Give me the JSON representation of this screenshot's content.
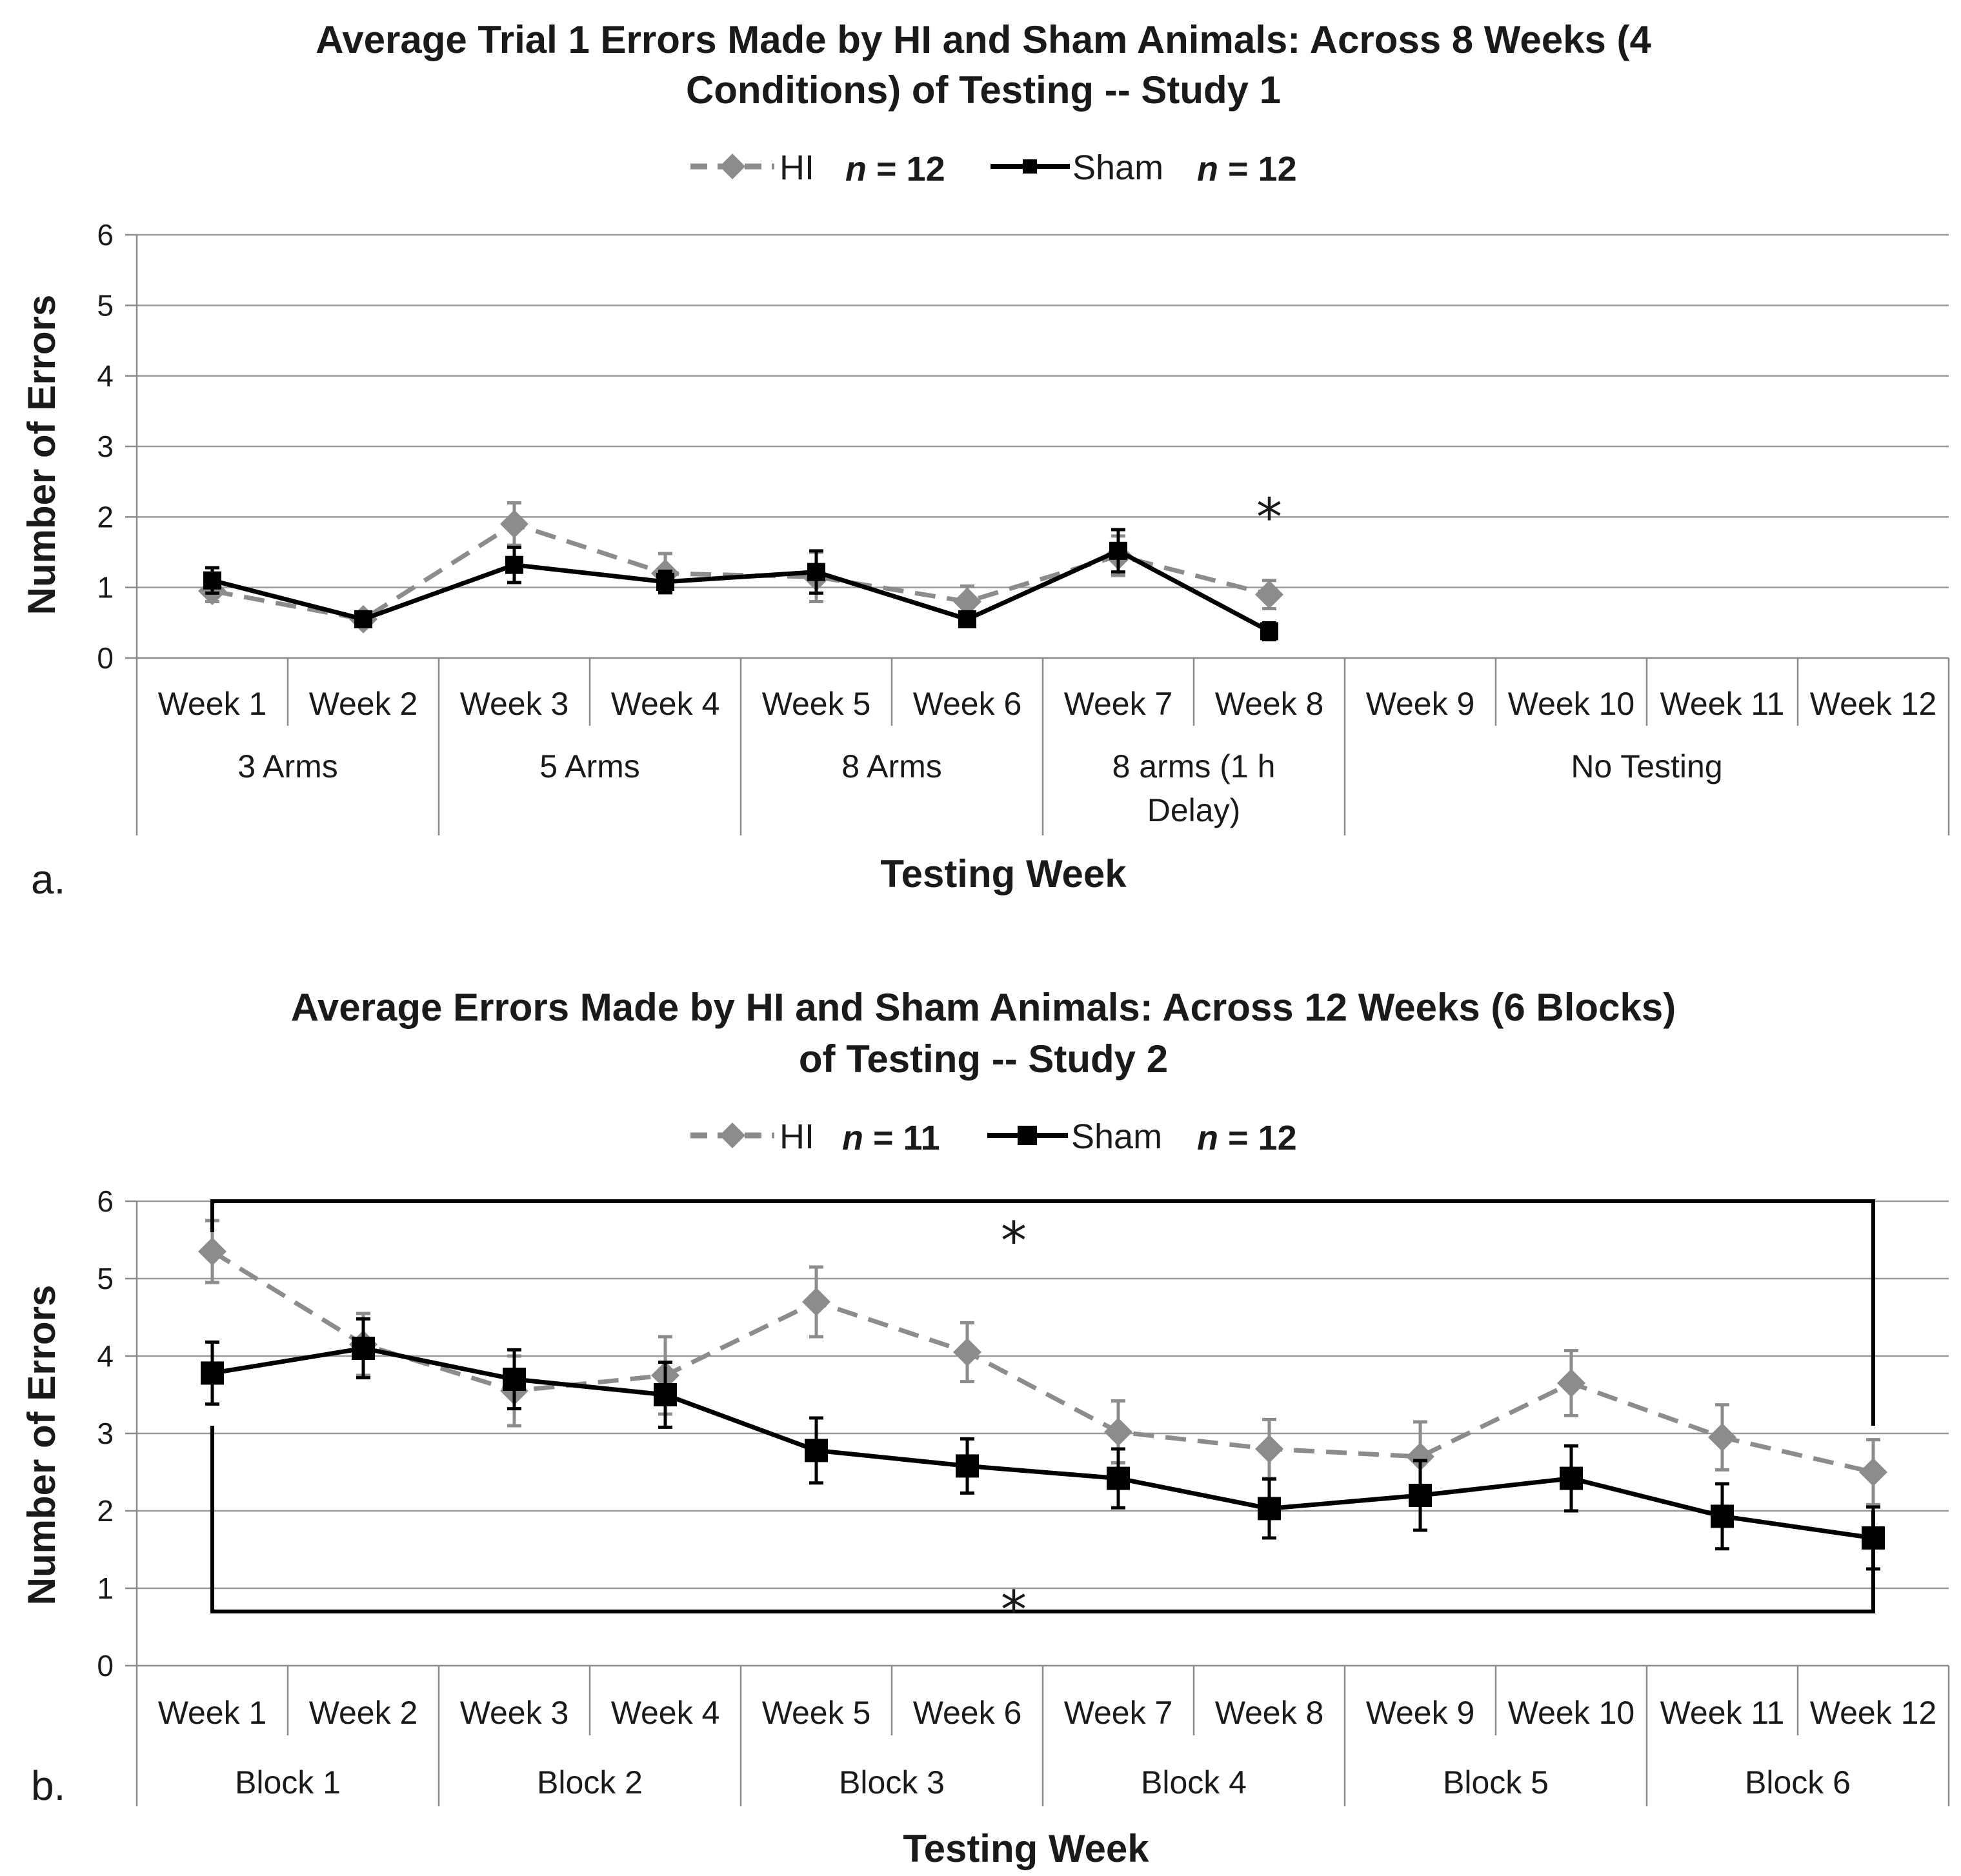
{
  "figure": {
    "panels": [
      {
        "id": "a",
        "panel_label": "a.",
        "title_lines": [
          "Average Trial 1 Errors Made by HI and Sham Animals: Across 8 Weeks (4",
          "Conditions) of Testing -- Study 1"
        ],
        "legend": [
          {
            "name": "HI",
            "n_prefix": "n",
            "n_value": " = 12"
          },
          {
            "name": "Sham",
            "n_prefix": "n",
            "n_value": " = 12"
          }
        ],
        "significance_marks": [
          {
            "text": "*",
            "week": "Week 8",
            "value": 2.2
          }
        ]
      },
      {
        "id": "b",
        "panel_label": "b.",
        "title_lines": [
          "Average Errors Made by HI and Sham Animals: Across 12 Weeks (6 Blocks)",
          "of Testing -- Study 2"
        ],
        "legend": [
          {
            "name": "HI",
            "n_prefix": "n",
            "n_value": " = 11"
          },
          {
            "name": "Sham",
            "n_prefix": "n",
            "n_value": " = 12"
          }
        ],
        "significance_marks": [
          {
            "text": "*",
            "bracket": "top",
            "from": "Week 1",
            "to": "Week 12",
            "value": 5.8
          },
          {
            "text": "*",
            "bracket": "bottom",
            "from": "Week 1",
            "to": "Week 12",
            "value": 0.95
          }
        ]
      }
    ]
  },
  "chart_data": [
    {
      "type": "line",
      "title": "Average Trial 1 Errors Made by HI and Sham Animals: Across 8 Weeks (4 Conditions) of Testing -- Study 1",
      "xlabel": "Testing Week",
      "ylabel": "Number of Errors",
      "ylim": [
        0,
        6
      ],
      "yticks": [
        0,
        1,
        2,
        3,
        4,
        5,
        6
      ],
      "grid": true,
      "legend_position": "top-center",
      "categories": [
        "Week 1",
        "Week 2",
        "Week 3",
        "Week 4",
        "Week 5",
        "Week 6",
        "Week 7",
        "Week 8",
        "Week 9",
        "Week 10",
        "Week 11",
        "Week 12"
      ],
      "groups": [
        {
          "label": "3 Arms",
          "weeks": 2
        },
        {
          "label": "5 Arms",
          "weeks": 2
        },
        {
          "label": "8 Arms",
          "weeks": 2
        },
        {
          "label": "8 arms (1  h Delay)",
          "label_lines": [
            "8 arms (1  h",
            "Delay)"
          ],
          "weeks": 2
        },
        {
          "label": "No Testing",
          "weeks": 4
        }
      ],
      "series": [
        {
          "name": "HI",
          "color": "#8c8c8c",
          "style": "dashed",
          "marker": "diamond",
          "values": [
            0.95,
            0.55,
            1.9,
            1.2,
            1.15,
            0.8,
            1.45,
            0.9,
            null,
            null,
            null,
            null
          ],
          "errors": [
            0.15,
            0.08,
            0.3,
            0.28,
            0.35,
            0.22,
            0.28,
            0.2,
            null,
            null,
            null,
            null
          ]
        },
        {
          "name": "Sham",
          "color": "#000000",
          "style": "solid",
          "marker": "square",
          "values": [
            1.1,
            0.55,
            1.32,
            1.08,
            1.22,
            0.55,
            1.52,
            0.38,
            null,
            null,
            null,
            null
          ],
          "errors": [
            0.18,
            0.1,
            0.25,
            0.15,
            0.3,
            0.1,
            0.3,
            0.12,
            null,
            null,
            null,
            null
          ]
        }
      ]
    },
    {
      "type": "line",
      "title": "Average Errors Made by HI and Sham Animals: Across 12 Weeks (6 Blocks) of Testing -- Study 2",
      "xlabel": "Testing Week",
      "ylabel": "Number of Errors",
      "ylim": [
        0,
        6
      ],
      "yticks": [
        0,
        1,
        2,
        3,
        4,
        5,
        6
      ],
      "grid": true,
      "legend_position": "top-center",
      "categories": [
        "Week 1",
        "Week 2",
        "Week 3",
        "Week 4",
        "Week 5",
        "Week 6",
        "Week 7",
        "Week 8",
        "Week 9",
        "Week 10",
        "Week 11",
        "Week 12"
      ],
      "groups": [
        {
          "label": "Block 1",
          "weeks": 2
        },
        {
          "label": "Block 2",
          "weeks": 2
        },
        {
          "label": "Block 3",
          "weeks": 2
        },
        {
          "label": "Block 4",
          "weeks": 2
        },
        {
          "label": "Block 5",
          "weeks": 2
        },
        {
          "label": "Block 6",
          "weeks": 2
        }
      ],
      "series": [
        {
          "name": "HI",
          "color": "#8c8c8c",
          "style": "dashed",
          "marker": "diamond",
          "values": [
            5.35,
            4.15,
            3.55,
            3.75,
            4.7,
            4.05,
            3.02,
            2.8,
            2.7,
            3.65,
            2.95,
            2.5
          ],
          "errors": [
            0.4,
            0.4,
            0.45,
            0.5,
            0.45,
            0.38,
            0.4,
            0.38,
            0.45,
            0.42,
            0.42,
            0.42
          ]
        },
        {
          "name": "Sham",
          "color": "#000000",
          "style": "solid",
          "marker": "square",
          "values": [
            3.78,
            4.1,
            3.7,
            3.5,
            2.78,
            2.58,
            2.42,
            2.03,
            2.2,
            2.42,
            1.93,
            1.65
          ],
          "errors": [
            0.4,
            0.38,
            0.38,
            0.42,
            0.42,
            0.35,
            0.38,
            0.38,
            0.45,
            0.42,
            0.42,
            0.4
          ]
        }
      ]
    }
  ]
}
